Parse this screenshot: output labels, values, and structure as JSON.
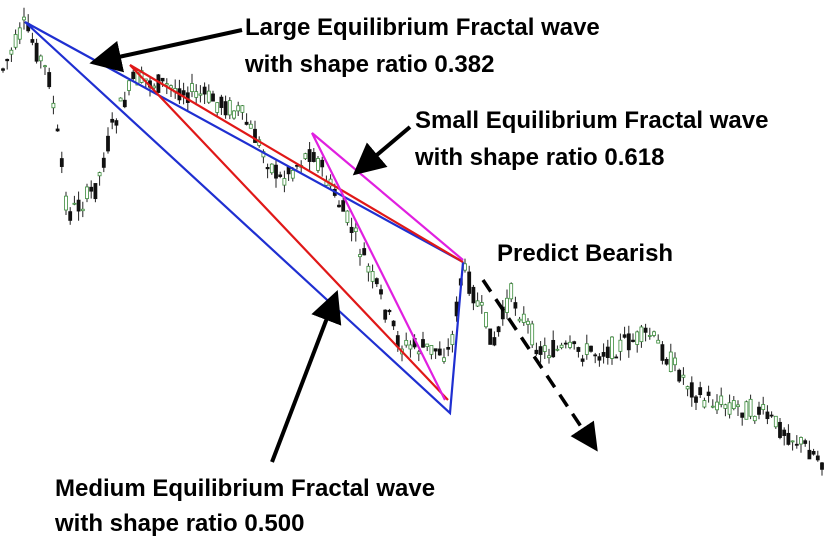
{
  "large": {
    "lines": [
      "Large Equilibrium Fractal wave",
      "with shape ratio 0.382"
    ]
  },
  "small": {
    "lines": [
      "Small Equilibrium Fractal wave",
      "with shape ratio 0.618"
    ]
  },
  "predict": {
    "label": "Predict Bearish"
  },
  "medium": {
    "lines": [
      "Medium Equilibrium Fractal wave",
      "with shape ratio 0.500"
    ]
  }
}
